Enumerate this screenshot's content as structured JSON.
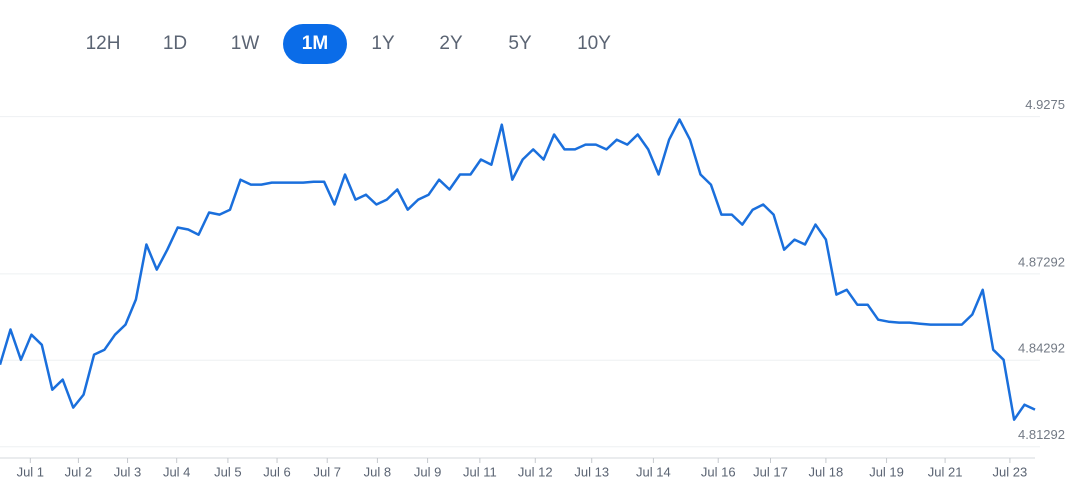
{
  "range_buttons": [
    "12H",
    "1D",
    "1W",
    "1M",
    "1Y",
    "2Y",
    "5Y",
    "10Y"
  ],
  "active_index": 3,
  "chart_data": {
    "type": "line",
    "color": "#1a6fdc",
    "grid": true,
    "x": [
      0,
      1,
      2,
      3,
      4,
      5,
      6,
      7,
      8,
      9,
      10,
      11,
      12,
      13,
      14,
      15,
      16,
      17,
      18,
      19,
      20,
      21,
      22,
      23,
      24,
      25,
      26,
      27,
      28,
      29,
      30,
      31,
      32,
      33,
      34,
      35,
      36,
      37,
      38,
      39,
      40,
      41,
      42,
      43,
      44,
      45,
      46,
      47,
      48,
      49,
      50,
      51,
      52,
      53,
      54,
      55,
      56,
      57,
      58,
      59,
      60,
      61,
      62,
      63,
      64,
      65,
      66,
      67,
      68,
      69,
      70,
      71,
      72,
      73,
      74,
      75,
      76,
      77,
      78,
      79,
      80,
      81,
      82,
      83,
      84,
      85,
      86,
      87,
      88,
      89,
      90,
      91,
      92,
      93,
      94,
      95,
      96,
      97,
      98,
      99
    ],
    "values": [
      4.8414,
      4.8536,
      4.8431,
      4.8518,
      4.8483,
      4.8327,
      4.8362,
      4.8265,
      4.831,
      4.8449,
      4.8466,
      4.8518,
      4.8553,
      4.864,
      4.8831,
      4.8744,
      4.8813,
      4.889,
      4.8883,
      4.8865,
      4.8942,
      4.8935,
      4.8952,
      4.9056,
      4.9039,
      4.9039,
      4.9046,
      4.9046,
      4.9046,
      4.9046,
      4.9049,
      4.9049,
      4.897,
      4.9074,
      4.8987,
      4.9004,
      4.897,
      4.8987,
      4.9022,
      4.8952,
      4.8987,
      4.9004,
      4.9056,
      4.9022,
      4.9074,
      4.9074,
      4.9126,
      4.9108,
      4.9247,
      4.9056,
      4.9126,
      4.9161,
      4.9126,
      4.9213,
      4.9161,
      4.9161,
      4.9178,
      4.9178,
      4.9161,
      4.9195,
      4.9178,
      4.9213,
      4.9161,
      4.9074,
      4.9195,
      4.9265,
      4.9195,
      4.9074,
      4.9039,
      4.8935,
      4.8935,
      4.89,
      4.8952,
      4.897,
      4.8935,
      4.8813,
      4.8848,
      4.8831,
      4.89,
      4.8848,
      4.8657,
      4.8674,
      4.8622,
      4.8622,
      4.857,
      4.8563,
      4.856,
      4.856,
      4.8556,
      4.8553,
      4.8553,
      4.8553,
      4.8553,
      4.8588,
      4.8674,
      4.8466,
      4.8431,
      4.8223,
      4.8275,
      4.8258
    ],
    "xlim": [
      0,
      99
    ],
    "xticks": [
      {
        "value": 2.9,
        "label": "Jul 1"
      },
      {
        "value": 7.5,
        "label": "Jul 2"
      },
      {
        "value": 12.2,
        "label": "Jul 3"
      },
      {
        "value": 16.9,
        "label": "Jul 4"
      },
      {
        "value": 21.8,
        "label": "Jul 5"
      },
      {
        "value": 26.5,
        "label": "Jul 6"
      },
      {
        "value": 31.3,
        "label": "Jul 7"
      },
      {
        "value": 36.1,
        "label": "Jul 8"
      },
      {
        "value": 40.9,
        "label": "Jul 9"
      },
      {
        "value": 45.9,
        "label": "Jul 11"
      },
      {
        "value": 51.2,
        "label": "Jul 12"
      },
      {
        "value": 56.6,
        "label": "Jul 13"
      },
      {
        "value": 62.5,
        "label": "Jul 14"
      },
      {
        "value": 68.7,
        "label": "Jul 16"
      },
      {
        "value": 73.7,
        "label": "Jul 17"
      },
      {
        "value": 79,
        "label": "Jul 18"
      },
      {
        "value": 84.8,
        "label": "Jul 19"
      },
      {
        "value": 90.4,
        "label": "Jul 21"
      },
      {
        "value": 96.6,
        "label": "Jul 23"
      }
    ],
    "ylim": [
      4.809,
      4.935
    ],
    "yticks": [
      4.81292,
      4.84292,
      4.87292,
      4.9275
    ]
  }
}
